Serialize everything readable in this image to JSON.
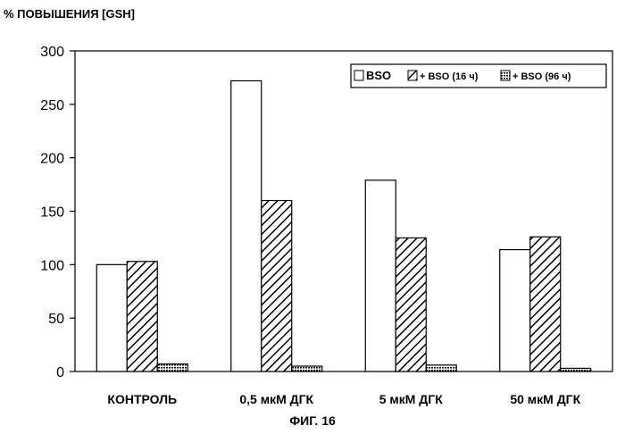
{
  "figure_caption": "ФИГ. 16",
  "chart_data": {
    "type": "bar",
    "title": "",
    "ylabel": "% ПОВЫШЕНИЯ [GSH]",
    "xlabel": "",
    "categories": [
      "КОНТРОЛЬ",
      "0,5 мкМ ДГК",
      "5 мкМ ДГК",
      "50 мкМ ДГК"
    ],
    "series": [
      {
        "name": "BSO",
        "pattern": "none",
        "values": [
          100,
          272,
          179,
          114
        ]
      },
      {
        "name": "+ BSO (16 ч)",
        "pattern": "diagonal",
        "values": [
          103,
          160,
          125,
          126
        ]
      },
      {
        "name": "+ BSO (96 ч)",
        "pattern": "dotted",
        "values": [
          7,
          5,
          6,
          3
        ]
      }
    ],
    "ylim": [
      0,
      300
    ],
    "yticks": [
      0,
      50,
      100,
      150,
      200,
      250,
      300
    ],
    "grid": false,
    "legend": "top-right"
  }
}
